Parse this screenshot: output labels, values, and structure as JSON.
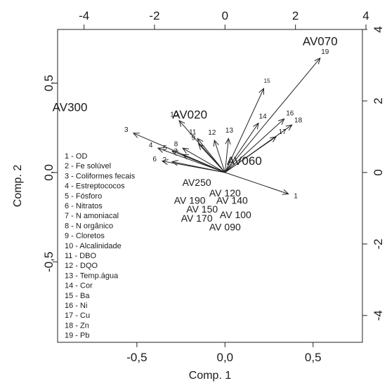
{
  "chart_data": {
    "type": "scatter",
    "subtype": "pca-biplot",
    "xlabel": "Comp. 1",
    "ylabel": "Comp. 2",
    "xlim": [
      -0.95,
      0.78
    ],
    "ylim": [
      -0.95,
      0.8
    ],
    "x_ticks": [
      "-0,5",
      "0,0",
      "0,5"
    ],
    "y_ticks": [
      "-0,5",
      "0,0",
      "0,5"
    ],
    "x_tick_values": [
      -0.5,
      0.0,
      0.5
    ],
    "y_tick_values": [
      -0.5,
      0.0,
      0.5
    ],
    "top_ticks": [
      "-4",
      "-2",
      "0",
      "2",
      "4"
    ],
    "top_tick_values": [
      -4,
      -2,
      0,
      2,
      4
    ],
    "right_ticks": [
      "4",
      "2",
      "0",
      "-2",
      "-4"
    ],
    "right_tick_values": [
      4,
      2,
      0,
      -2,
      -4
    ],
    "loading_scale": 0.2,
    "grid": false,
    "observations": [
      {
        "label": "AV070",
        "x": 0.54,
        "y": 0.73,
        "large": true
      },
      {
        "label": "AV300",
        "x": -0.88,
        "y": 0.36,
        "large": true
      },
      {
        "label": "AV020",
        "x": -0.2,
        "y": 0.32,
        "large": true
      },
      {
        "label": "AV060",
        "x": 0.11,
        "y": 0.06,
        "large": true
      },
      {
        "label": "AV250",
        "x": -0.16,
        "y": -0.06,
        "large": false
      },
      {
        "label": "AV 120",
        "x": 0.0,
        "y": -0.12,
        "large": false
      },
      {
        "label": "AV 190",
        "x": -0.2,
        "y": -0.16,
        "large": false
      },
      {
        "label": "AV 140",
        "x": 0.04,
        "y": -0.16,
        "large": false
      },
      {
        "label": "AV 150",
        "x": -0.13,
        "y": -0.21,
        "large": false
      },
      {
        "label": "AV 100",
        "x": 0.06,
        "y": -0.24,
        "large": false
      },
      {
        "label": "AV 170",
        "x": -0.16,
        "y": -0.26,
        "large": false
      },
      {
        "label": "AV 090",
        "x": 0.0,
        "y": -0.31,
        "large": false
      }
    ],
    "loadings": [
      {
        "num": "1",
        "x": 1.8,
        "y": -0.6
      },
      {
        "num": "2",
        "x": -1.5,
        "y": 0.3
      },
      {
        "num": "3",
        "x": -2.6,
        "y": 1.1
      },
      {
        "num": "4",
        "x": -1.9,
        "y": 0.68
      },
      {
        "num": "5",
        "x": -1.5,
        "y": 0.6
      },
      {
        "num": "6",
        "x": -1.78,
        "y": 0.32
      },
      {
        "num": "7",
        "x": -1.2,
        "y": 0.5
      },
      {
        "num": "8",
        "x": -1.2,
        "y": 0.68
      },
      {
        "num": "9",
        "x": -0.75,
        "y": 0.8
      },
      {
        "num": "10",
        "x": -1.3,
        "y": 1.45
      },
      {
        "num": "11",
        "x": -0.78,
        "y": 0.95
      },
      {
        "num": "12",
        "x": -0.3,
        "y": 0.9
      },
      {
        "num": "13",
        "x": 0.1,
        "y": 0.95
      },
      {
        "num": "14",
        "x": 0.95,
        "y": 1.38
      },
      {
        "num": "15",
        "x": 1.1,
        "y": 2.35
      },
      {
        "num": "16",
        "x": 1.68,
        "y": 1.5
      },
      {
        "num": "17",
        "x": 1.45,
        "y": 1.0
      },
      {
        "num": "18",
        "x": 1.9,
        "y": 1.33
      },
      {
        "num": "19",
        "x": 2.7,
        "y": 3.2
      }
    ],
    "legend": [
      "1 - OD",
      "2 - Fe solúvel",
      "3 - Coliformes fecais",
      "4 - Estreptococos",
      "5 - Fósforo",
      "6 - Nitratos",
      "7 - N amoniacal",
      "8 - N orgânico",
      "9 - Cloretos",
      "10 - Alcalinidade",
      "11 - DBO",
      "12 - DQO",
      "13 - Temp.água",
      "14 - Cor",
      "15 - Ba",
      "16 - Ni",
      "17 - Cu",
      "18 - Zn",
      "19 - Pb"
    ]
  }
}
